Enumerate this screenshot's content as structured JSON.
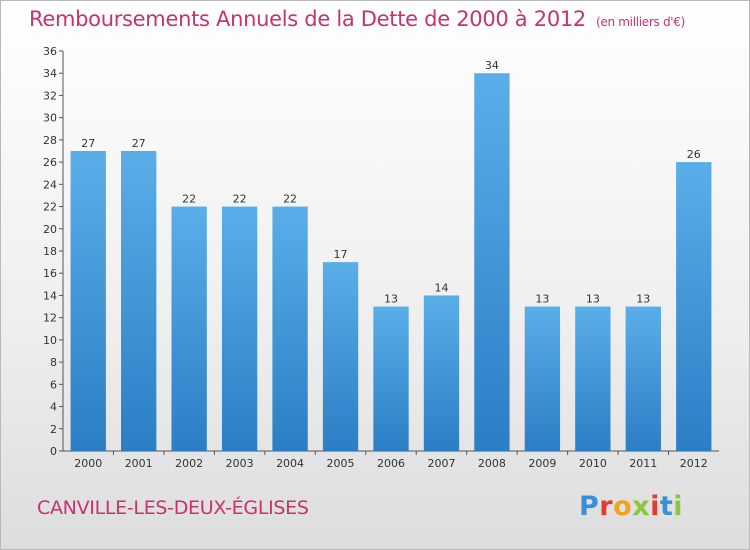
{
  "chart_data": {
    "type": "bar",
    "title": "Remboursements Annuels de la Dette de 2000 à 2012",
    "unit_note": "(en milliers d'€)",
    "categories": [
      "2000",
      "2001",
      "2002",
      "2003",
      "2004",
      "2005",
      "2006",
      "2007",
      "2008",
      "2009",
      "2010",
      "2011",
      "2012"
    ],
    "values": [
      27,
      27,
      22,
      22,
      22,
      17,
      13,
      14,
      34,
      13,
      13,
      13,
      26
    ],
    "data_labels": [
      "27",
      "27",
      "22",
      "22",
      "22",
      "17",
      "13",
      "14",
      "34",
      "13",
      "13",
      "13",
      "26"
    ],
    "ylim": [
      0,
      36
    ],
    "yticks": [
      "0",
      "2",
      "4",
      "6",
      "8",
      "10",
      "12",
      "14",
      "16",
      "18",
      "20",
      "22",
      "24",
      "26",
      "28",
      "30",
      "32",
      "34",
      "36"
    ],
    "grid": false,
    "legend": false,
    "colors": {
      "bar_top": "#5aaee8",
      "bar_bottom": "#2b7ec4",
      "axis": "#555555",
      "title": "#c8326e"
    }
  },
  "footer": {
    "commune": "CANVILLE-LES-DEUX-ÉGLISES",
    "brand": "Proxiti",
    "brand_colors": [
      "#3a8fd6",
      "#e23c2f",
      "#f2a31c",
      "#8cc63f",
      "#e23c2f",
      "#3a8fd6",
      "#8cc63f"
    ]
  }
}
